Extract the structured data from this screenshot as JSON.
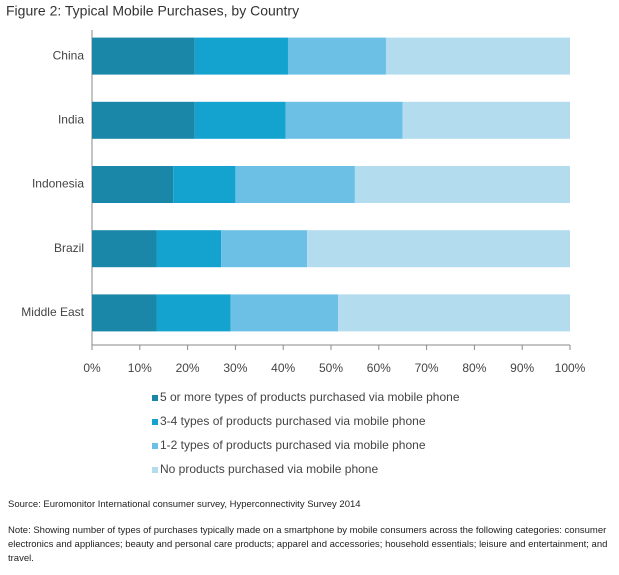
{
  "chart_data": {
    "type": "stacked_barh",
    "title": "Figure 2: Typical Mobile Purchases, by Country",
    "categories": [
      "China",
      "India",
      "Indonesia",
      "Brazil",
      "Middle East"
    ],
    "series": [
      {
        "name": "5 or more types of products purchased via mobile phone",
        "color": "#1a87a8",
        "values": [
          21.5,
          21.5,
          17,
          13.5,
          13.5
        ]
      },
      {
        "name": "3-4 types of products purchased via mobile phone",
        "color": "#14a3cf",
        "values": [
          19.5,
          19,
          13,
          13.5,
          15.5
        ]
      },
      {
        "name": "1-2 types of products purchased via mobile phone",
        "color": "#6cc0e6",
        "values": [
          20.5,
          24.5,
          25,
          18,
          22.5
        ]
      },
      {
        "name": "No products purchased via mobile phone",
        "color": "#b3dcef",
        "values": [
          38.5,
          35,
          45,
          55,
          48.5
        ]
      }
    ],
    "xlim": [
      0,
      100
    ],
    "xticks": [
      {
        "value": 0,
        "label": "0%"
      },
      {
        "value": 10,
        "label": "10%"
      },
      {
        "value": 20,
        "label": "20%"
      },
      {
        "value": 30,
        "label": "30%"
      },
      {
        "value": 40,
        "label": "40%"
      },
      {
        "value": 50,
        "label": "50%"
      },
      {
        "value": 60,
        "label": "60%"
      },
      {
        "value": 70,
        "label": "70%"
      },
      {
        "value": 80,
        "label": "80%"
      },
      {
        "value": 90,
        "label": "90%"
      },
      {
        "value": 100,
        "label": "100%"
      }
    ],
    "source": "Source: Euromonitor International consumer survey, Hyperconnectivity Survey 2014",
    "note": "Note: Showing number of types of purchases typically made on a smartphone by mobile consumers across the following categories: consumer electronics and appliances; beauty and personal care products; apparel and accessories; household essentials; leisure and entertainment; and travel."
  }
}
